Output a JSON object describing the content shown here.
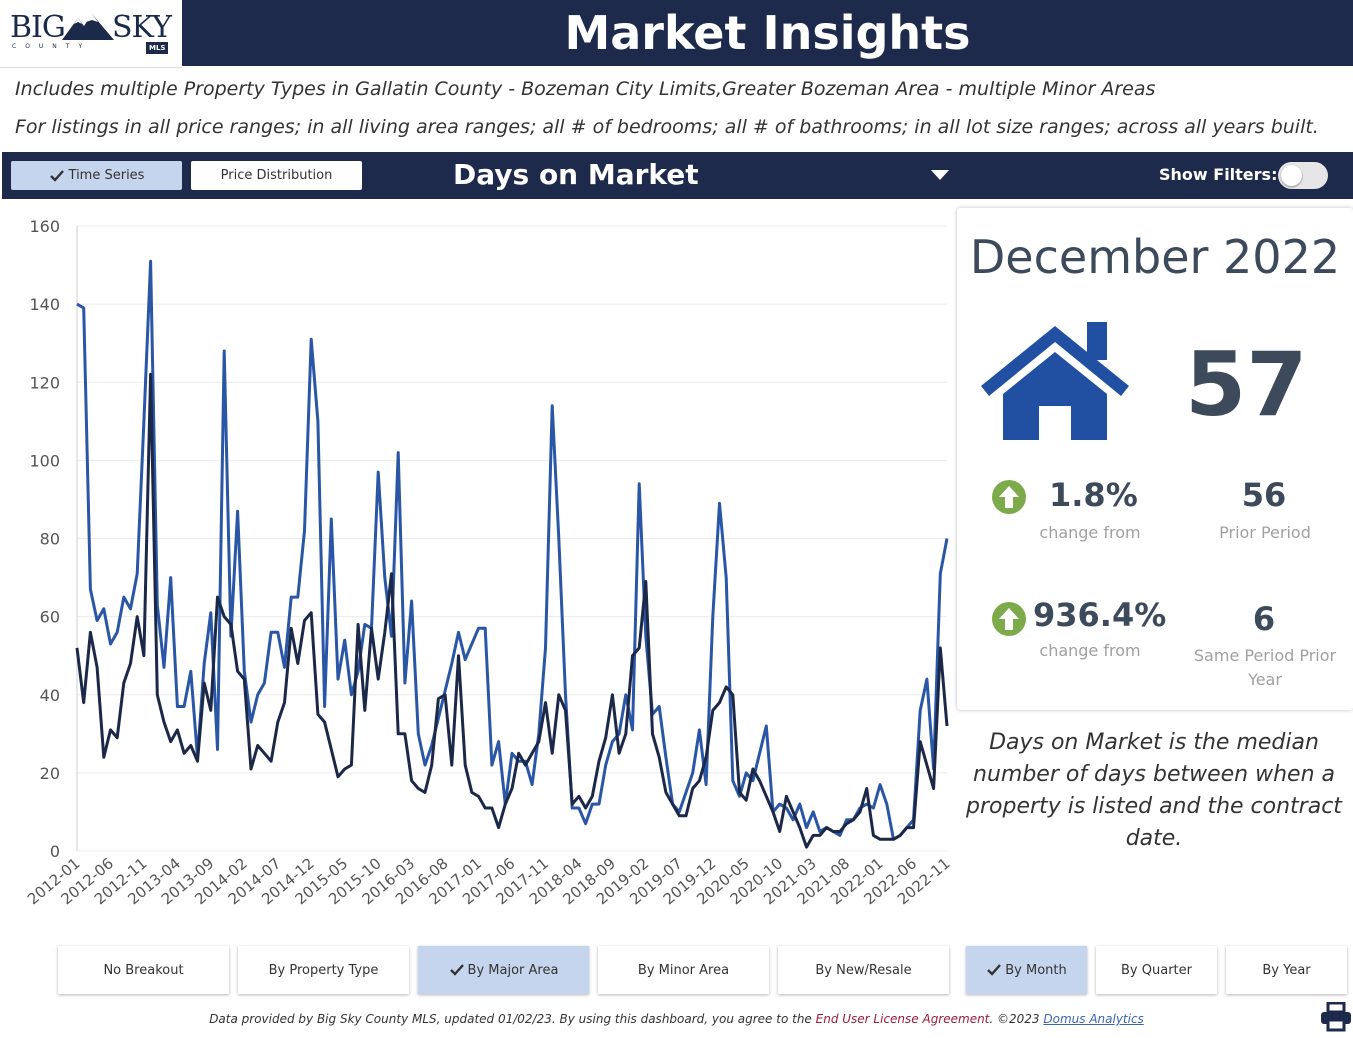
{
  "header": {
    "logo_big": "BIG",
    "logo_sky": "SKY",
    "logo_county": "COUNTY",
    "logo_mls": "MLS",
    "title": "Market Insights"
  },
  "subtitles": {
    "line1": "Includes multiple Property Types in Gallatin County - Bozeman City Limits,Greater Bozeman Area - multiple Minor Areas",
    "line2": "For listings in all price ranges; in all living area ranges; all # of bedrooms; all # of bathrooms; in all lot size ranges; across all years built."
  },
  "toolbar": {
    "time_series_label": "Time Series",
    "price_distribution_label": "Price Distribution",
    "metric": "Days on Market",
    "show_filters_label": "Show Filters:"
  },
  "kpi": {
    "period": "December 2022",
    "value": "57",
    "change_pct": "1.8%",
    "change_label": "change from",
    "prior_value": "56",
    "prior_label": "Prior Period",
    "yoy_pct": "936.4%",
    "yoy_label": "change from",
    "yoy_value": "6",
    "yoy_compare_label": "Same Period Prior Year"
  },
  "definition": "Days on Market is the median number of days between when a property is listed and the contract date.",
  "breakout_buttons": [
    {
      "label": "No Breakout",
      "active": false
    },
    {
      "label": "By Property Type",
      "active": false
    },
    {
      "label": "By Major Area",
      "active": true
    },
    {
      "label": "By Minor Area",
      "active": false
    },
    {
      "label": "By New/Resale",
      "active": false
    }
  ],
  "period_buttons": [
    {
      "label": "By Month",
      "active": true
    },
    {
      "label": "By Quarter",
      "active": false
    },
    {
      "label": "By Year",
      "active": false
    }
  ],
  "footer": {
    "text": "Data provided by Big Sky County MLS, updated 01/02/23.  By using this dashboard, you agree to the ",
    "eula": "End User License Agreement",
    "mid": ".  ©2023 ",
    "domus": "Domus Analytics"
  },
  "colors": {
    "navy": "#1e2a4c",
    "series_blue": "#2a56a6",
    "series_dark": "#1b2847",
    "active_button": "#c5d5ee",
    "up_arrow": "#7daa4a"
  },
  "chart_data": {
    "type": "line",
    "xlabel": "",
    "ylabel": "",
    "ylim": [
      0,
      160
    ],
    "yticks": [
      0,
      20,
      40,
      60,
      80,
      100,
      120,
      140,
      160
    ],
    "x_start": "2012-01",
    "x_tick_labels": [
      "2012-01",
      "2012-06",
      "2012-11",
      "2013-04",
      "2013-09",
      "2014-02",
      "2014-07",
      "2014-12",
      "2015-05",
      "2015-10",
      "2016-03",
      "2016-08",
      "2017-01",
      "2017-06",
      "2017-11",
      "2018-04",
      "2018-09",
      "2019-02",
      "2019-07",
      "2019-12",
      "2020-05",
      "2020-10",
      "2021-03",
      "2021-08",
      "2022-01",
      "2022-06",
      "2022-11"
    ],
    "series": [
      {
        "color": "#2a56a6",
        "values": [
          140,
          139,
          67,
          59,
          62,
          53,
          56,
          65,
          62,
          71,
          110,
          151,
          63,
          47,
          70,
          37,
          37,
          46,
          24,
          48,
          61,
          26,
          128,
          55,
          87,
          46,
          33,
          40,
          43,
          56,
          56,
          47,
          65,
          65,
          82,
          131,
          110,
          37,
          85,
          44,
          54,
          40,
          46,
          58,
          57,
          97,
          70,
          55,
          102,
          43,
          64,
          30,
          22,
          27,
          34,
          41,
          48,
          56,
          49,
          53,
          57,
          57,
          22,
          28,
          12,
          25,
          23,
          23,
          17,
          30,
          52,
          114,
          80,
          40,
          11,
          11,
          7,
          12,
          12,
          22,
          28,
          30,
          40,
          31,
          94,
          55,
          35,
          37,
          24,
          12,
          10,
          15,
          20,
          31,
          17,
          60,
          89,
          70,
          18,
          14,
          20,
          18,
          25,
          32,
          10,
          12,
          11,
          8,
          12,
          6,
          10,
          5,
          6,
          5,
          4,
          8,
          8,
          11,
          12,
          11,
          17,
          12,
          3,
          4,
          6,
          8,
          36,
          44,
          21,
          71,
          80
        ],
        "name": ""
      },
      {
        "color": "#1b2847",
        "values": [
          52,
          38,
          56,
          47,
          24,
          31,
          29,
          43,
          48,
          60,
          50,
          122,
          40,
          33,
          28,
          31,
          25,
          27,
          23,
          43,
          36,
          65,
          60,
          58,
          46,
          44,
          21,
          27,
          25,
          23,
          33,
          38,
          57,
          48,
          59,
          61,
          35,
          33,
          26,
          19,
          21,
          22,
          58,
          36,
          57,
          44,
          56,
          71,
          30,
          30,
          18,
          16,
          15,
          22,
          39,
          40,
          22,
          50,
          22,
          15,
          14,
          11,
          11,
          6,
          12,
          16,
          25,
          22,
          25,
          28,
          38,
          25,
          40,
          36,
          12,
          14,
          11,
          14,
          23,
          29,
          40,
          25,
          30,
          50,
          52,
          69,
          30,
          24,
          15,
          12,
          9,
          9,
          16,
          18,
          24,
          36,
          38,
          42,
          40,
          15,
          13,
          21,
          18,
          14,
          10,
          5,
          14,
          10,
          6,
          1,
          4,
          4,
          6,
          5,
          5,
          7,
          8,
          10,
          16,
          4,
          3,
          3,
          3,
          4,
          6,
          6,
          28,
          22,
          16,
          52,
          32
        ],
        "name": ""
      }
    ]
  }
}
